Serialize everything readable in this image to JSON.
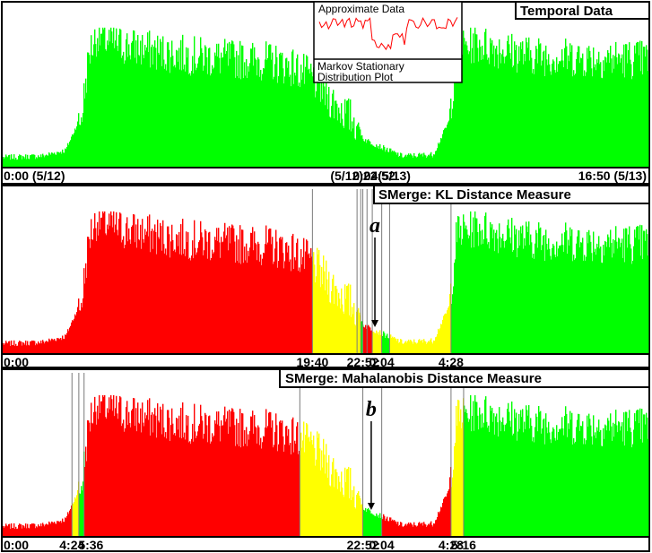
{
  "chart_data": [
    {
      "type": "area",
      "title": "Temporal Data",
      "inset": {
        "top_label": "Approximate Data",
        "bottom_label_line1": "Markov Stationary",
        "bottom_label_line2": "Distribution Plot"
      },
      "x_tick_labels": [
        {
          "text": "0:00 (5/12)",
          "x": 0
        },
        {
          "text": "(5/12)22:52",
          "x": 1372
        },
        {
          "text": "0:04(5/13)",
          "x": 1444
        },
        {
          "text": "16:50 (5/13)",
          "x": 2450
        }
      ],
      "ylim": [
        0,
        100
      ],
      "grid": false,
      "colors": {
        "green": "#00ff00",
        "yellow": "#ffff00",
        "red": "#ff0000"
      },
      "segments": [
        {
          "start": 0,
          "end": 1390,
          "color": "green"
        },
        {
          "start": 1390,
          "end": 1444,
          "color": "green"
        },
        {
          "start": 1444,
          "end": 2460,
          "color": "green"
        }
      ]
    },
    {
      "type": "area",
      "title": "SMerge: KL Distance Measure",
      "x_tick_labels": [
        {
          "text": "0:00",
          "x": 0
        },
        {
          "text": "19:40",
          "x": 1180
        },
        {
          "text": "22:52",
          "x": 1372
        },
        {
          "text": "0:04",
          "x": 1444
        },
        {
          "text": "4:28",
          "x": 1708
        }
      ],
      "annotation": {
        "text": "a",
        "x": 1418
      },
      "ylim": [
        0,
        100
      ],
      "grid": false,
      "colors": {
        "green": "#00ff00",
        "yellow": "#ffff00",
        "red": "#ff0000"
      },
      "boundaries": [
        1180,
        1350,
        1364,
        1372,
        1388,
        1408,
        1444,
        1474,
        1708
      ],
      "segments": [
        {
          "start": 0,
          "end": 1180,
          "color": "red"
        },
        {
          "start": 1180,
          "end": 1350,
          "color": "yellow"
        },
        {
          "start": 1350,
          "end": 1364,
          "color": "yellow"
        },
        {
          "start": 1364,
          "end": 1372,
          "color": "green"
        },
        {
          "start": 1372,
          "end": 1388,
          "color": "red"
        },
        {
          "start": 1388,
          "end": 1408,
          "color": "red"
        },
        {
          "start": 1408,
          "end": 1444,
          "color": "yellow"
        },
        {
          "start": 1444,
          "end": 1474,
          "color": "green"
        },
        {
          "start": 1474,
          "end": 1708,
          "color": "yellow"
        },
        {
          "start": 1708,
          "end": 2460,
          "color": "green"
        }
      ]
    },
    {
      "type": "area",
      "title": "SMerge: Mahalanobis Distance Measure",
      "x_tick_labels": [
        {
          "text": "0:00",
          "x": 0
        },
        {
          "text": "4:24",
          "x": 264
        },
        {
          "text": "5:36",
          "x": 336
        },
        {
          "text": "22:52",
          "x": 1372
        },
        {
          "text": "0:04",
          "x": 1444
        },
        {
          "text": "4:28",
          "x": 1708
        },
        {
          "text": "5:16",
          "x": 1756
        }
      ],
      "annotation": {
        "text": "b",
        "x": 1404
      },
      "ylim": [
        0,
        100
      ],
      "grid": false,
      "colors": {
        "green": "#00ff00",
        "yellow": "#ffff00",
        "red": "#ff0000"
      },
      "boundaries": [
        264,
        290,
        310,
        1132,
        1372,
        1444,
        1708,
        1756
      ],
      "segments": [
        {
          "start": 0,
          "end": 264,
          "color": "red"
        },
        {
          "start": 264,
          "end": 290,
          "color": "yellow"
        },
        {
          "start": 290,
          "end": 310,
          "color": "green"
        },
        {
          "start": 310,
          "end": 1132,
          "color": "red"
        },
        {
          "start": 1132,
          "end": 1372,
          "color": "yellow"
        },
        {
          "start": 1372,
          "end": 1444,
          "color": "green"
        },
        {
          "start": 1444,
          "end": 1708,
          "color": "red"
        },
        {
          "start": 1708,
          "end": 1756,
          "color": "yellow"
        },
        {
          "start": 1756,
          "end": 2460,
          "color": "green"
        }
      ]
    }
  ]
}
